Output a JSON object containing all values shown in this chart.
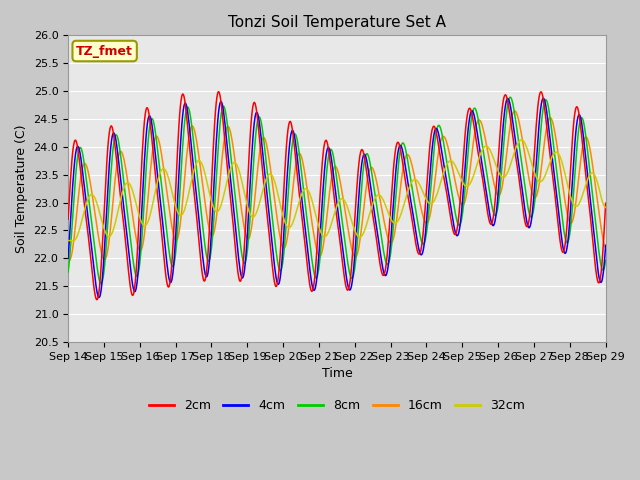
{
  "title": "Tonzi Soil Temperature Set A",
  "xlabel": "Time",
  "ylabel": "Soil Temperature (C)",
  "ylim": [
    20.5,
    26.0
  ],
  "x_tick_labels": [
    "Sep 14",
    "Sep 15",
    "Sep 16",
    "Sep 17",
    "Sep 18",
    "Sep 19",
    "Sep 20",
    "Sep 21",
    "Sep 22",
    "Sep 23",
    "Sep 24",
    "Sep 25",
    "Sep 26",
    "Sep 27",
    "Sep 28",
    "Sep 29"
  ],
  "colors": {
    "2cm": "#ff0000",
    "4cm": "#0000ff",
    "8cm": "#00cc00",
    "16cm": "#ff8800",
    "32cm": "#cccc00"
  },
  "annotation_text": "TZ_fmet",
  "annotation_box_facecolor": "#ffffcc",
  "annotation_box_edgecolor": "#999900",
  "annotation_text_color": "#cc0000",
  "plot_bg_color": "#e8e8e8",
  "fig_bg_color": "#c8c8c8",
  "title_fontsize": 11,
  "axis_label_fontsize": 9,
  "tick_fontsize": 8,
  "legend_fontsize": 9
}
